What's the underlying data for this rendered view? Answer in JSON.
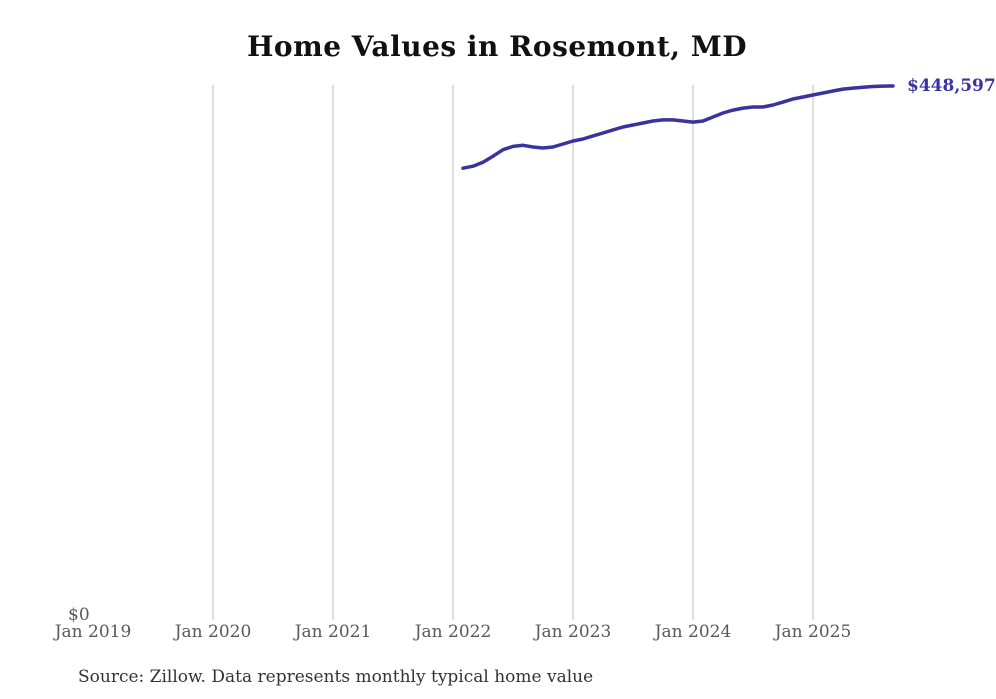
{
  "chart_data": {
    "type": "line",
    "title": "Home Values in Rosemont, MD",
    "xlabel": "",
    "ylabel": "",
    "legend": "none",
    "grid": "vertical-only",
    "line_color": "#39329f",
    "grid_color": "#cccccc",
    "end_label": "$448,597",
    "source_note": "Source: Zillow. Data represents monthly typical home value",
    "x_axis": {
      "tick_labels": [
        "Jan 2019",
        "Jan 2020",
        "Jan 2021",
        "Jan 2022",
        "Jan 2023",
        "Jan 2024",
        "Jan 2025"
      ],
      "tick_months": [
        0,
        12,
        24,
        36,
        48,
        60,
        72
      ],
      "gridline_months": [
        12,
        24,
        36,
        48,
        60,
        72
      ]
    },
    "y_axis": {
      "min": 0,
      "max": 448597,
      "tick_labels": [
        "$0"
      ]
    },
    "series": [
      {
        "name": "Monthly typical home value",
        "points": [
          [
            "2022-02",
            378600
          ],
          [
            "2022-03",
            380300
          ],
          [
            "2022-04",
            383700
          ],
          [
            "2022-05",
            388800
          ],
          [
            "2022-06",
            394400
          ],
          [
            "2022-07",
            397200
          ],
          [
            "2022-08",
            398100
          ],
          [
            "2022-09",
            396700
          ],
          [
            "2022-10",
            395800
          ],
          [
            "2022-11",
            396700
          ],
          [
            "2022-12",
            399200
          ],
          [
            "2023-01",
            401800
          ],
          [
            "2023-02",
            403500
          ],
          [
            "2023-03",
            406100
          ],
          [
            "2023-04",
            408600
          ],
          [
            "2023-05",
            411200
          ],
          [
            "2023-06",
            413700
          ],
          [
            "2023-07",
            415400
          ],
          [
            "2023-08",
            417100
          ],
          [
            "2023-09",
            418800
          ],
          [
            "2023-10",
            419700
          ],
          [
            "2023-11",
            419700
          ],
          [
            "2023-12",
            418800
          ],
          [
            "2024-01",
            417900
          ],
          [
            "2024-02",
            418800
          ],
          [
            "2024-03",
            422200
          ],
          [
            "2024-04",
            425600
          ],
          [
            "2024-05",
            428100
          ],
          [
            "2024-06",
            429800
          ],
          [
            "2024-07",
            430700
          ],
          [
            "2024-08",
            430700
          ],
          [
            "2024-09",
            432400
          ],
          [
            "2024-10",
            434900
          ],
          [
            "2024-11",
            437500
          ],
          [
            "2024-12",
            439200
          ],
          [
            "2025-01",
            440900
          ],
          [
            "2025-02",
            442600
          ],
          [
            "2025-03",
            444300
          ],
          [
            "2025-04",
            446000
          ],
          [
            "2025-05",
            446800
          ],
          [
            "2025-06",
            447600
          ],
          [
            "2025-07",
            448200
          ],
          [
            "2025-08",
            448500
          ],
          [
            "2025-09",
            448597
          ]
        ]
      }
    ]
  }
}
